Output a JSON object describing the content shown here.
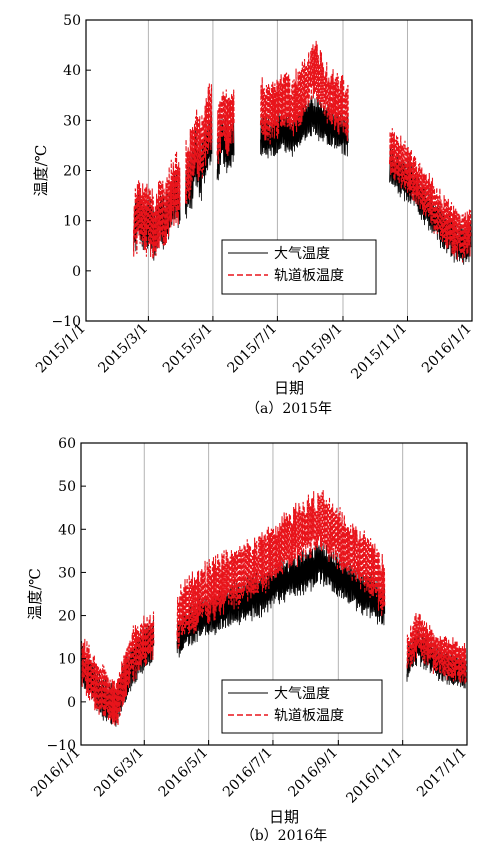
{
  "colors": {
    "air": "#000000",
    "slab": "#e8141b",
    "grid": "#b4b4b4"
  },
  "chart_data": [
    {
      "type": "line",
      "caption": "（a）2015年",
      "xlabel": "日期",
      "ylabel": "温度/℃",
      "ylim": [
        -10,
        50
      ],
      "yticks": [
        "−10",
        "0",
        "10",
        "20",
        "30",
        "40",
        "50"
      ],
      "xlim": [
        "2015/1/1",
        "2016/1/1"
      ],
      "xtick_labels": [
        "2015/1/1",
        "2015/3/1",
        "2015/5/1",
        "2015/7/1",
        "2015/9/1",
        "2015/11/1",
        "2016/1/1"
      ],
      "grid": true,
      "legend": {
        "placement": "lower-center",
        "entries": [
          "大气温度",
          "轨道板温度"
        ]
      },
      "series": [
        {
          "name": "大气温度",
          "style": "solid",
          "segments": [
            {
              "start": "2015/2/15",
              "end": "2015/3/31",
              "x": [
                "2015/2/15",
                "2015/2/20",
                "2015/2/25",
                "2015/3/2",
                "2015/3/7",
                "2015/3/12",
                "2015/3/17",
                "2015/3/22",
                "2015/3/27",
                "2015/3/31"
              ],
              "y": [
                8,
                11,
                9,
                10,
                7,
                11,
                9,
                13,
                15,
                12
              ],
              "amplitude": 5
            },
            {
              "start": "2015/4/5",
              "end": "2015/4/30",
              "x": [
                "2015/4/5",
                "2015/4/10",
                "2015/4/15",
                "2015/4/20",
                "2015/4/25",
                "2015/4/30"
              ],
              "y": [
                16,
                18,
                22,
                20,
                24,
                26
              ],
              "amplitude": 6
            },
            {
              "start": "2015/5/5",
              "end": "2015/5/21",
              "x": [
                "2015/5/5",
                "2015/5/10",
                "2015/5/15",
                "2015/5/21"
              ],
              "y": [
                22,
                26,
                24,
                27
              ],
              "amplitude": 5
            },
            {
              "start": "2015/6/15",
              "end": "2015/9/6",
              "x": [
                "2015/6/15",
                "2015/6/25",
                "2015/7/5",
                "2015/7/15",
                "2015/7/25",
                "2015/8/5",
                "2015/8/15",
                "2015/8/25",
                "2015/9/6"
              ],
              "y": [
                27,
                26,
                28,
                27,
                29,
                31,
                29,
                28,
                27
              ],
              "amplitude": 4
            },
            {
              "start": "2015/10/15",
              "end": "2015/12/31",
              "x": [
                "2015/10/15",
                "2015/10/25",
                "2015/11/5",
                "2015/11/15",
                "2015/11/25",
                "2015/12/5",
                "2015/12/15",
                "2015/12/25",
                "2015/12/31"
              ],
              "y": [
                21,
                19,
                17,
                14,
                11,
                8,
                6,
                5,
                6
              ],
              "amplitude": 4
            }
          ]
        },
        {
          "name": "轨道板温度",
          "style": "dashed",
          "segments": [
            {
              "start": "2015/2/15",
              "end": "2015/3/31",
              "x": [
                "2015/2/15",
                "2015/2/20",
                "2015/2/25",
                "2015/3/2",
                "2015/3/7",
                "2015/3/12",
                "2015/3/17",
                "2015/3/22",
                "2015/3/27",
                "2015/3/31"
              ],
              "y": [
                9,
                12,
                10,
                11,
                8,
                12,
                10,
                15,
                17,
                14
              ],
              "amplitude": 7
            },
            {
              "start": "2015/4/5",
              "end": "2015/4/30",
              "x": [
                "2015/4/5",
                "2015/4/10",
                "2015/4/15",
                "2015/4/20",
                "2015/4/25",
                "2015/4/30"
              ],
              "y": [
                19,
                21,
                26,
                24,
                29,
                31
              ],
              "amplitude": 7
            },
            {
              "start": "2015/5/5",
              "end": "2015/5/21",
              "x": [
                "2015/5/5",
                "2015/5/10",
                "2015/5/15",
                "2015/5/21"
              ],
              "y": [
                26,
                31,
                29,
                32
              ],
              "amplitude": 6
            },
            {
              "start": "2015/6/15",
              "end": "2015/9/6",
              "x": [
                "2015/6/15",
                "2015/6/25",
                "2015/7/5",
                "2015/7/15",
                "2015/7/25",
                "2015/8/5",
                "2015/8/15",
                "2015/8/25",
                "2015/9/6"
              ],
              "y": [
                33,
                31,
                34,
                33,
                36,
                40,
                36,
                34,
                32
              ],
              "amplitude": 6
            },
            {
              "start": "2015/10/15",
              "end": "2015/12/31",
              "x": [
                "2015/10/15",
                "2015/10/25",
                "2015/11/5",
                "2015/11/15",
                "2015/11/25",
                "2015/12/5",
                "2015/12/15",
                "2015/12/25",
                "2015/12/31"
              ],
              "y": [
                24,
                22,
                19,
                16,
                13,
                10,
                8,
                7,
                8
              ],
              "amplitude": 5
            }
          ]
        }
      ]
    },
    {
      "type": "line",
      "caption": "（b）2016年",
      "xlabel": "日期",
      "ylabel": "温度/℃",
      "ylim": [
        -10,
        60
      ],
      "yticks": [
        "−10",
        "0",
        "10",
        "20",
        "30",
        "40",
        "50",
        "60"
      ],
      "xlim": [
        "2016/1/1",
        "2017/1/1"
      ],
      "xtick_labels": [
        "2016/1/1",
        "2016/3/1",
        "2016/5/1",
        "2016/7/1",
        "2016/9/1",
        "2016/11/1",
        "2017/1/1"
      ],
      "grid": true,
      "legend": {
        "placement": "lower-center",
        "entries": [
          "大气温度",
          "轨道板温度"
        ]
      },
      "series": [
        {
          "name": "大气温度",
          "style": "solid",
          "segments": [
            {
              "start": "2016/1/1",
              "end": "2016/3/10",
              "x": [
                "2016/1/1",
                "2016/1/8",
                "2016/1/15",
                "2016/1/22",
                "2016/1/29",
                "2016/2/5",
                "2016/2/12",
                "2016/2/19",
                "2016/2/26",
                "2016/3/4",
                "2016/3/10"
              ],
              "y": [
                9,
                6,
                3,
                1,
                -1,
                0,
                5,
                9,
                11,
                13,
                14
              ],
              "amplitude": 5
            },
            {
              "start": "2016/4/1",
              "end": "2016/10/15",
              "x": [
                "2016/4/1",
                "2016/4/20",
                "2016/5/10",
                "2016/5/30",
                "2016/6/20",
                "2016/7/10",
                "2016/7/30",
                "2016/8/15",
                "2016/9/1",
                "2016/9/20",
                "2016/10/5",
                "2016/10/15"
              ],
              "y": [
                15,
                19,
                21,
                23,
                25,
                28,
                30,
                32,
                29,
                26,
                24,
                22
              ],
              "amplitude": 5
            },
            {
              "start": "2016/11/5",
              "end": "2016/12/31",
              "x": [
                "2016/11/5",
                "2016/11/15",
                "2016/11/25",
                "2016/12/5",
                "2016/12/15",
                "2016/12/25",
                "2016/12/31"
              ],
              "y": [
                9,
                13,
                11,
                9,
                8,
                7,
                6
              ],
              "amplitude": 4
            }
          ]
        },
        {
          "name": "轨道板温度",
          "style": "dashed",
          "segments": [
            {
              "start": "2016/1/1",
              "end": "2016/3/10",
              "x": [
                "2016/1/1",
                "2016/1/8",
                "2016/1/15",
                "2016/1/22",
                "2016/1/29",
                "2016/2/5",
                "2016/2/12",
                "2016/2/19",
                "2016/2/26",
                "2016/3/4",
                "2016/3/10"
              ],
              "y": [
                10,
                7,
                4,
                2,
                0,
                1,
                6,
                11,
                13,
                15,
                16
              ],
              "amplitude": 6
            },
            {
              "start": "2016/4/1",
              "end": "2016/10/15",
              "x": [
                "2016/4/1",
                "2016/4/20",
                "2016/5/10",
                "2016/5/30",
                "2016/6/20",
                "2016/7/10",
                "2016/7/30",
                "2016/8/15",
                "2016/9/1",
                "2016/9/20",
                "2016/10/5",
                "2016/10/15"
              ],
              "y": [
                19,
                24,
                27,
                29,
                32,
                36,
                40,
                42,
                38,
                34,
                30,
                26
              ],
              "amplitude": 7
            },
            {
              "start": "2016/11/5",
              "end": "2016/12/31",
              "x": [
                "2016/11/5",
                "2016/11/15",
                "2016/11/25",
                "2016/12/5",
                "2016/12/15",
                "2016/12/25",
                "2016/12/31"
              ],
              "y": [
                11,
                16,
                13,
                11,
                10,
                9,
                8
              ],
              "amplitude": 5
            }
          ]
        }
      ]
    }
  ]
}
